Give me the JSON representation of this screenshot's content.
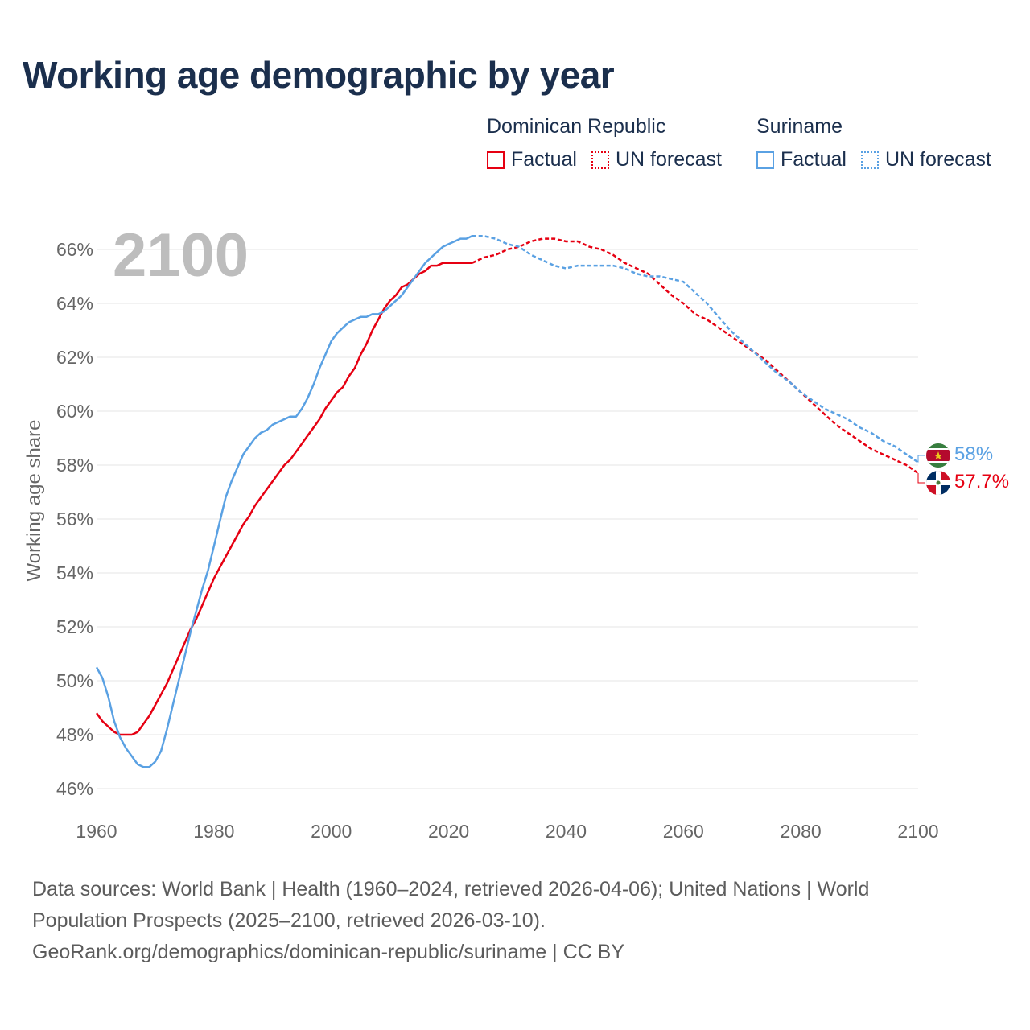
{
  "title": "Working age demographic by year",
  "legend": {
    "groups": [
      {
        "country": "Dominican Republic",
        "factual_label": "Factual",
        "forecast_label": "UN forecast"
      },
      {
        "country": "Suriname",
        "factual_label": "Factual",
        "forecast_label": "UN forecast"
      }
    ]
  },
  "year_watermark": "2100",
  "colors": {
    "dominican_republic": "#e60012",
    "suriname": "#5aa1e3",
    "title": "#1b2f4d"
  },
  "chart_data": {
    "type": "line",
    "title": "Working age demographic by year",
    "xlabel": "",
    "ylabel": "Working age share",
    "xlim": [
      1960,
      2100
    ],
    "ylim": [
      45.2,
      67.2
    ],
    "x_ticks": [
      "1960",
      "1980",
      "2000",
      "2020",
      "2040",
      "2060",
      "2080",
      "2100"
    ],
    "y_ticks": [
      "46%",
      "48%",
      "50%",
      "52%",
      "54%",
      "56%",
      "58%",
      "60%",
      "62%",
      "64%",
      "66%"
    ],
    "factual_range": [
      1960,
      2024
    ],
    "forecast_range": [
      2025,
      2100
    ],
    "series": [
      {
        "name": "Dominican Republic",
        "color": "#e60012",
        "end_label": "57.7%",
        "factual": [
          [
            1960,
            48.8
          ],
          [
            1961,
            48.5
          ],
          [
            1962,
            48.3
          ],
          [
            1963,
            48.1
          ],
          [
            1964,
            48.0
          ],
          [
            1965,
            48.0
          ],
          [
            1966,
            48.0
          ],
          [
            1967,
            48.1
          ],
          [
            1968,
            48.4
          ],
          [
            1969,
            48.7
          ],
          [
            1970,
            49.1
          ],
          [
            1971,
            49.5
          ],
          [
            1972,
            49.9
          ],
          [
            1973,
            50.4
          ],
          [
            1974,
            50.9
          ],
          [
            1975,
            51.4
          ],
          [
            1976,
            51.9
          ],
          [
            1977,
            52.3
          ],
          [
            1978,
            52.8
          ],
          [
            1979,
            53.3
          ],
          [
            1980,
            53.8
          ],
          [
            1981,
            54.2
          ],
          [
            1982,
            54.6
          ],
          [
            1983,
            55.0
          ],
          [
            1984,
            55.4
          ],
          [
            1985,
            55.8
          ],
          [
            1986,
            56.1
          ],
          [
            1987,
            56.5
          ],
          [
            1988,
            56.8
          ],
          [
            1989,
            57.1
          ],
          [
            1990,
            57.4
          ],
          [
            1991,
            57.7
          ],
          [
            1992,
            58.0
          ],
          [
            1993,
            58.2
          ],
          [
            1994,
            58.5
          ],
          [
            1995,
            58.8
          ],
          [
            1996,
            59.1
          ],
          [
            1997,
            59.4
          ],
          [
            1998,
            59.7
          ],
          [
            1999,
            60.1
          ],
          [
            2000,
            60.4
          ],
          [
            2001,
            60.7
          ],
          [
            2002,
            60.9
          ],
          [
            2003,
            61.3
          ],
          [
            2004,
            61.6
          ],
          [
            2005,
            62.1
          ],
          [
            2006,
            62.5
          ],
          [
            2007,
            63.0
          ],
          [
            2008,
            63.4
          ],
          [
            2009,
            63.8
          ],
          [
            2010,
            64.1
          ],
          [
            2011,
            64.3
          ],
          [
            2012,
            64.6
          ],
          [
            2013,
            64.7
          ],
          [
            2014,
            64.9
          ],
          [
            2015,
            65.1
          ],
          [
            2016,
            65.2
          ],
          [
            2017,
            65.4
          ],
          [
            2018,
            65.4
          ],
          [
            2019,
            65.5
          ],
          [
            2020,
            65.5
          ],
          [
            2021,
            65.5
          ],
          [
            2022,
            65.5
          ],
          [
            2023,
            65.5
          ],
          [
            2024,
            65.5
          ]
        ],
        "forecast": [
          [
            2024,
            65.5
          ],
          [
            2026,
            65.7
          ],
          [
            2028,
            65.8
          ],
          [
            2030,
            66.0
          ],
          [
            2032,
            66.1
          ],
          [
            2034,
            66.3
          ],
          [
            2036,
            66.4
          ],
          [
            2038,
            66.4
          ],
          [
            2040,
            66.3
          ],
          [
            2042,
            66.3
          ],
          [
            2044,
            66.1
          ],
          [
            2046,
            66.0
          ],
          [
            2048,
            65.8
          ],
          [
            2050,
            65.5
          ],
          [
            2052,
            65.3
          ],
          [
            2054,
            65.1
          ],
          [
            2056,
            64.7
          ],
          [
            2058,
            64.3
          ],
          [
            2060,
            64.0
          ],
          [
            2062,
            63.6
          ],
          [
            2064,
            63.4
          ],
          [
            2066,
            63.1
          ],
          [
            2068,
            62.8
          ],
          [
            2070,
            62.5
          ],
          [
            2072,
            62.2
          ],
          [
            2074,
            61.9
          ],
          [
            2076,
            61.5
          ],
          [
            2078,
            61.1
          ],
          [
            2080,
            60.7
          ],
          [
            2082,
            60.3
          ],
          [
            2084,
            59.9
          ],
          [
            2086,
            59.5
          ],
          [
            2088,
            59.2
          ],
          [
            2090,
            58.9
          ],
          [
            2092,
            58.6
          ],
          [
            2094,
            58.4
          ],
          [
            2096,
            58.2
          ],
          [
            2098,
            58.0
          ],
          [
            2100,
            57.7
          ]
        ]
      },
      {
        "name": "Suriname",
        "color": "#5aa1e3",
        "end_label": "58%",
        "factual": [
          [
            1960,
            50.5
          ],
          [
            1961,
            50.1
          ],
          [
            1962,
            49.4
          ],
          [
            1963,
            48.5
          ],
          [
            1964,
            47.9
          ],
          [
            1965,
            47.5
          ],
          [
            1966,
            47.2
          ],
          [
            1967,
            46.9
          ],
          [
            1968,
            46.8
          ],
          [
            1969,
            46.8
          ],
          [
            1970,
            47.0
          ],
          [
            1971,
            47.4
          ],
          [
            1972,
            48.2
          ],
          [
            1973,
            49.1
          ],
          [
            1974,
            50.0
          ],
          [
            1975,
            50.9
          ],
          [
            1976,
            51.8
          ],
          [
            1977,
            52.6
          ],
          [
            1978,
            53.4
          ],
          [
            1979,
            54.1
          ],
          [
            1980,
            55.0
          ],
          [
            1981,
            55.9
          ],
          [
            1982,
            56.8
          ],
          [
            1983,
            57.4
          ],
          [
            1984,
            57.9
          ],
          [
            1985,
            58.4
          ],
          [
            1986,
            58.7
          ],
          [
            1987,
            59.0
          ],
          [
            1988,
            59.2
          ],
          [
            1989,
            59.3
          ],
          [
            1990,
            59.5
          ],
          [
            1991,
            59.6
          ],
          [
            1992,
            59.7
          ],
          [
            1993,
            59.8
          ],
          [
            1994,
            59.8
          ],
          [
            1995,
            60.1
          ],
          [
            1996,
            60.5
          ],
          [
            1997,
            61.0
          ],
          [
            1998,
            61.6
          ],
          [
            1999,
            62.1
          ],
          [
            2000,
            62.6
          ],
          [
            2001,
            62.9
          ],
          [
            2002,
            63.1
          ],
          [
            2003,
            63.3
          ],
          [
            2004,
            63.4
          ],
          [
            2005,
            63.5
          ],
          [
            2006,
            63.5
          ],
          [
            2007,
            63.6
          ],
          [
            2008,
            63.6
          ],
          [
            2009,
            63.7
          ],
          [
            2010,
            63.9
          ],
          [
            2011,
            64.1
          ],
          [
            2012,
            64.3
          ],
          [
            2013,
            64.6
          ],
          [
            2014,
            64.9
          ],
          [
            2015,
            65.2
          ],
          [
            2016,
            65.5
          ],
          [
            2017,
            65.7
          ],
          [
            2018,
            65.9
          ],
          [
            2019,
            66.1
          ],
          [
            2020,
            66.2
          ],
          [
            2021,
            66.3
          ],
          [
            2022,
            66.4
          ],
          [
            2023,
            66.4
          ],
          [
            2024,
            66.5
          ]
        ],
        "forecast": [
          [
            2024,
            66.5
          ],
          [
            2026,
            66.5
          ],
          [
            2028,
            66.4
          ],
          [
            2030,
            66.2
          ],
          [
            2032,
            66.1
          ],
          [
            2034,
            65.8
          ],
          [
            2036,
            65.6
          ],
          [
            2038,
            65.4
          ],
          [
            2040,
            65.3
          ],
          [
            2042,
            65.4
          ],
          [
            2044,
            65.4
          ],
          [
            2046,
            65.4
          ],
          [
            2048,
            65.4
          ],
          [
            2050,
            65.3
          ],
          [
            2052,
            65.1
          ],
          [
            2054,
            65.0
          ],
          [
            2056,
            65.0
          ],
          [
            2058,
            64.9
          ],
          [
            2060,
            64.8
          ],
          [
            2062,
            64.4
          ],
          [
            2064,
            64.0
          ],
          [
            2066,
            63.5
          ],
          [
            2068,
            63.0
          ],
          [
            2070,
            62.6
          ],
          [
            2072,
            62.2
          ],
          [
            2074,
            61.8
          ],
          [
            2076,
            61.4
          ],
          [
            2078,
            61.1
          ],
          [
            2080,
            60.7
          ],
          [
            2082,
            60.4
          ],
          [
            2084,
            60.1
          ],
          [
            2086,
            59.9
          ],
          [
            2088,
            59.7
          ],
          [
            2090,
            59.4
          ],
          [
            2092,
            59.2
          ],
          [
            2094,
            58.9
          ],
          [
            2096,
            58.7
          ],
          [
            2098,
            58.4
          ],
          [
            2100,
            58.1
          ]
        ]
      }
    ]
  },
  "footer": {
    "sources": "Data sources: World Bank | Health (1960–2024, retrieved 2026-04-06); United Nations | World Population Prospects (2025–2100, retrieved 2026-03-10).",
    "url_license": "GeoRank.org/demographics/dominican-republic/suriname | CC BY"
  }
}
